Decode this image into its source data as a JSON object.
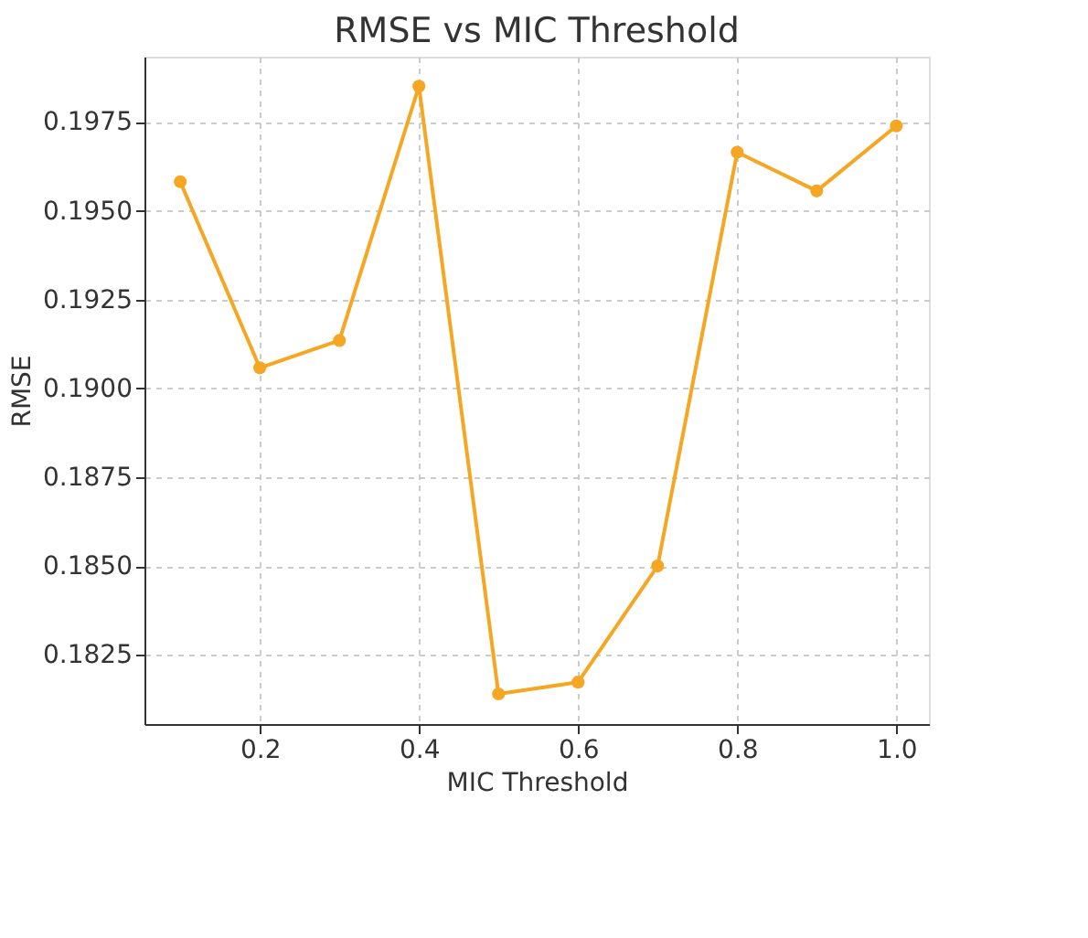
{
  "chart_data": {
    "type": "line",
    "title": "RMSE vs MIC Threshold",
    "xlabel": "MIC Threshold",
    "ylabel": "RMSE",
    "x": [
      0.1,
      0.2,
      0.3,
      0.4,
      0.5,
      0.6,
      0.7,
      0.8,
      0.9,
      1.0
    ],
    "series": [
      {
        "color": "#f5a623",
        "values": [
          0.19582,
          0.19058,
          0.19135,
          0.19851,
          0.1814,
          0.18173,
          0.185,
          0.19665,
          0.19556,
          0.19739
        ]
      }
    ],
    "xlim": [
      0.055,
      1.041
    ],
    "ylim": [
      0.18055,
      0.19934
    ],
    "xticks": [
      {
        "value": 0.2,
        "label": "0.2"
      },
      {
        "value": 0.4,
        "label": "0.4"
      },
      {
        "value": 0.6,
        "label": "0.6"
      },
      {
        "value": 0.8,
        "label": "0.8"
      },
      {
        "value": 1.0,
        "label": "1.0"
      }
    ],
    "yticks": [
      0.1825,
      {
        "value": 0.185,
        "label": "0.1850"
      },
      0.1875,
      {
        "value": 0.19,
        "label": "0.1900"
      },
      0.1925,
      {
        "value": 0.195,
        "label": "0.1950"
      },
      0.1975
    ],
    "grid": true,
    "marker": "circle",
    "line_style": "solid"
  }
}
